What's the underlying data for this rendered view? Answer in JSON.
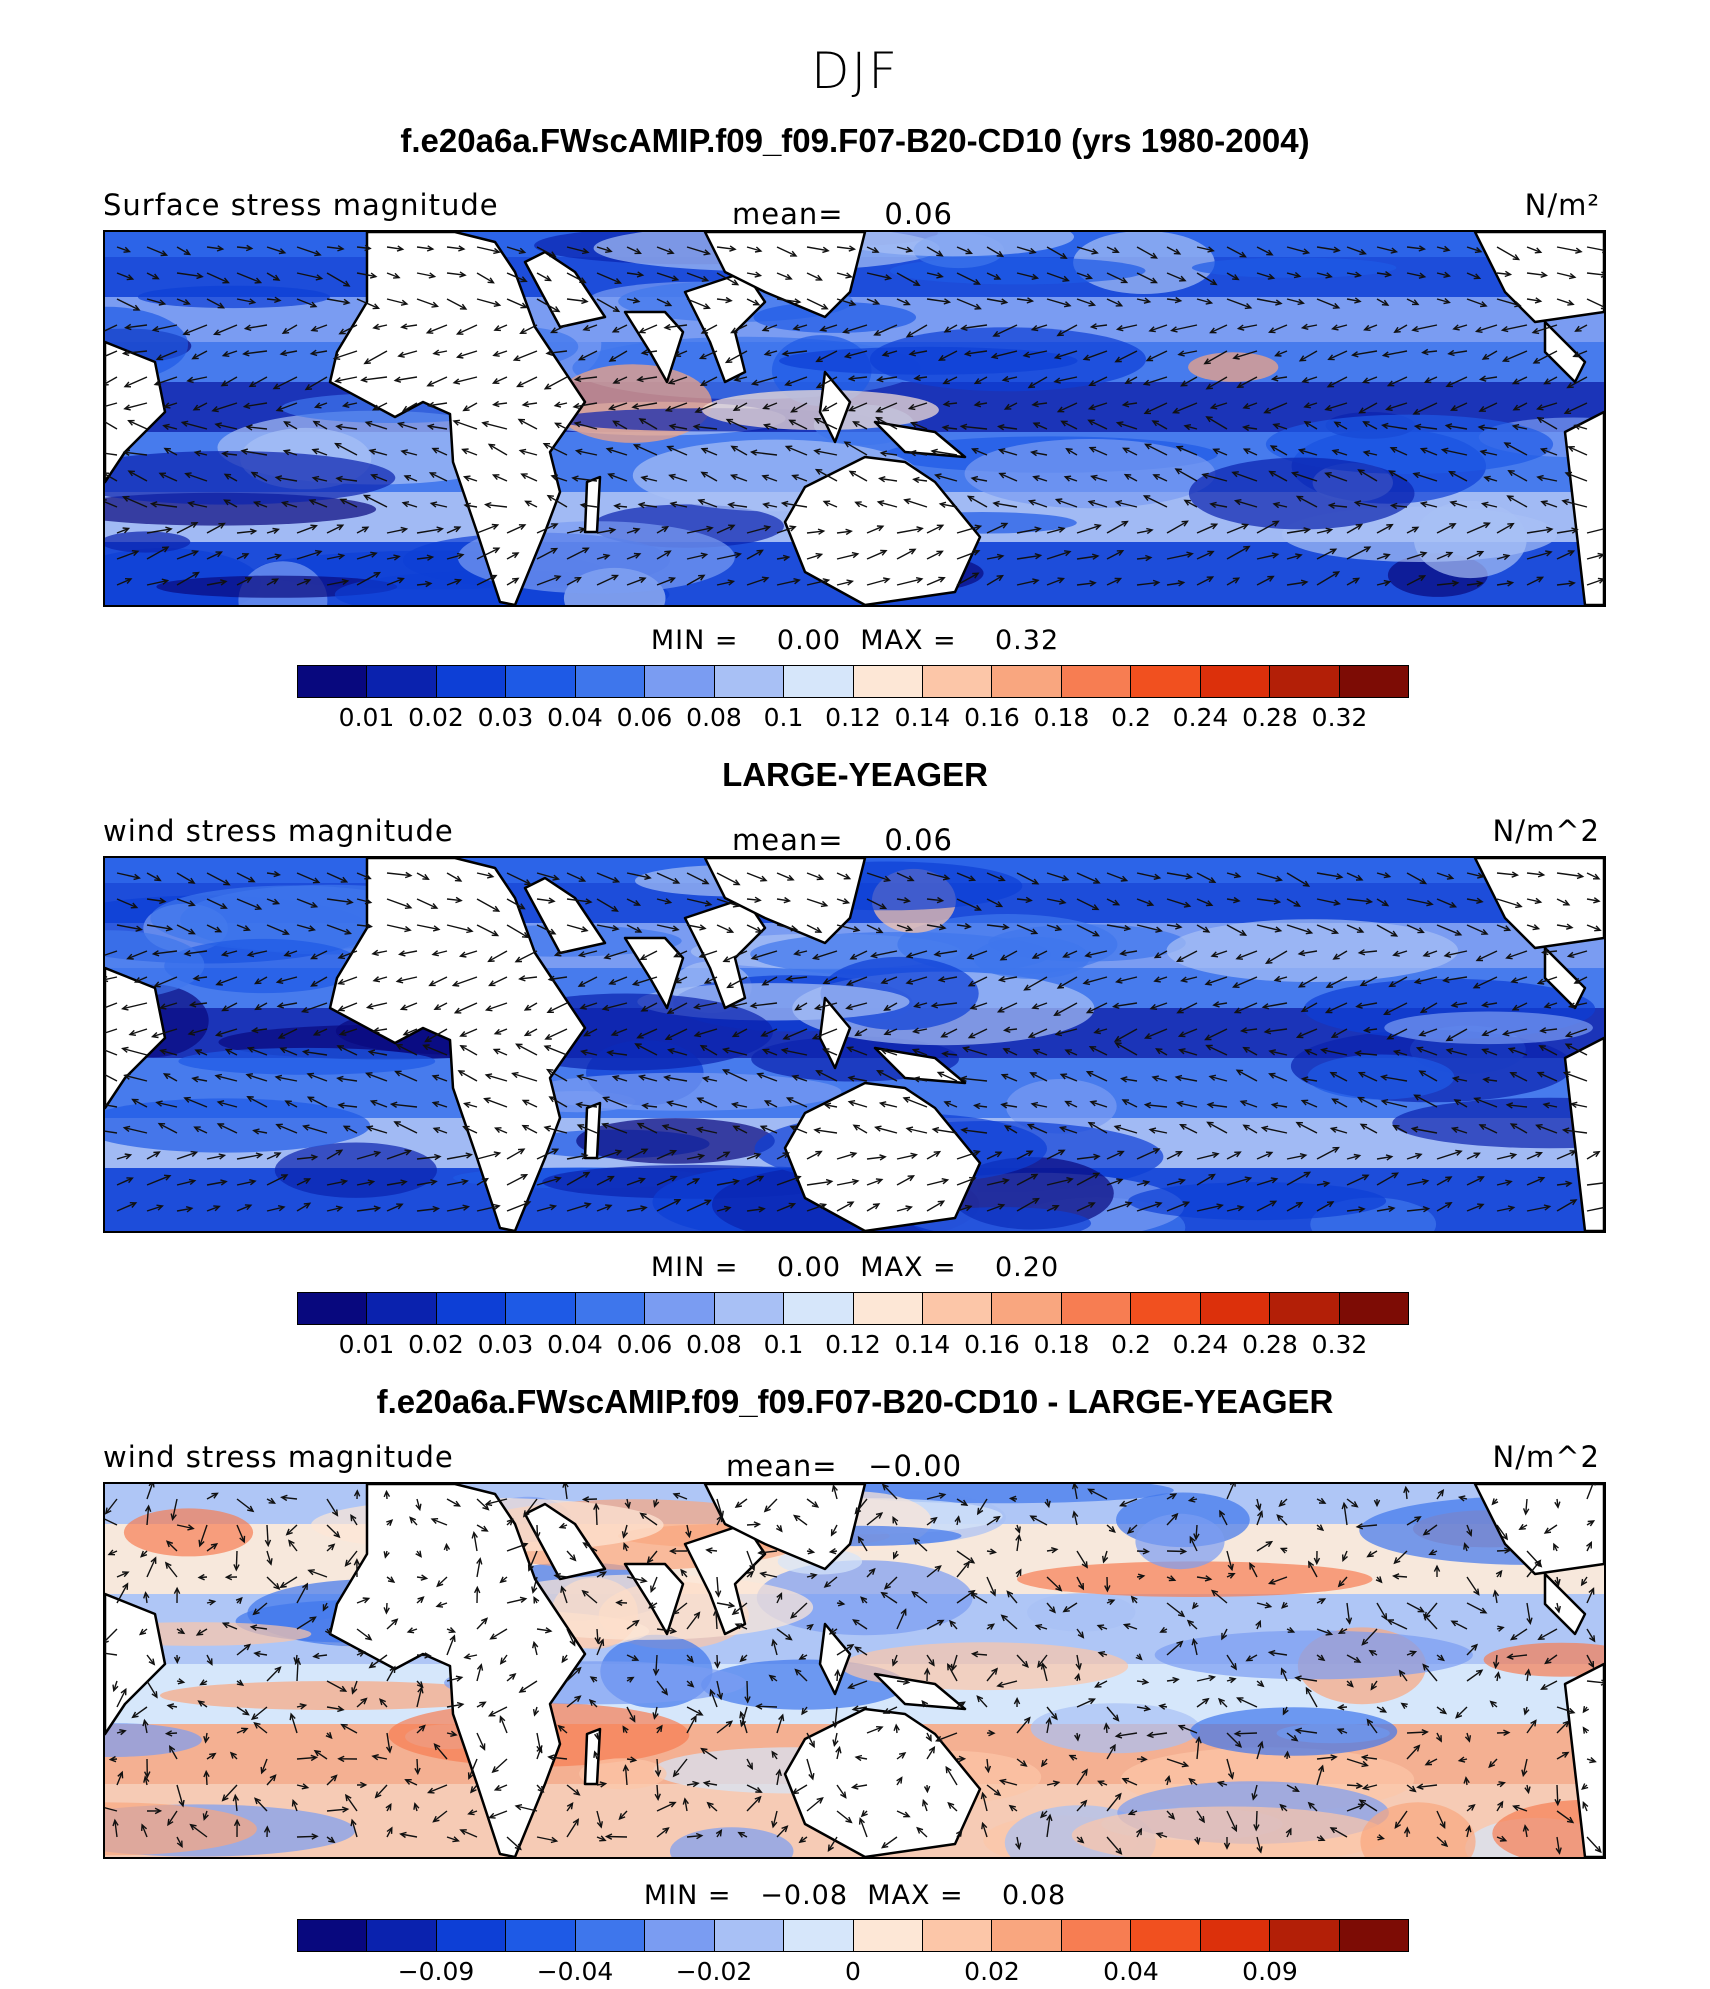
{
  "figure": {
    "title": "DJF"
  },
  "colors": {
    "palette": [
      "#08087e",
      "#0a22ae",
      "#0d3fd6",
      "#1e5ae6",
      "#3e76ec",
      "#7a9cf2",
      "#a8c0f5",
      "#d6e6fa",
      "#fde7d6",
      "#fcc6a8",
      "#f9a67f",
      "#f77d52",
      "#f1501f",
      "#dc300b",
      "#b31f07",
      "#7d0c05"
    ],
    "ocean_mid": "#3e76ec",
    "ocean_strong": "#0d3fd6",
    "land": "#ffffff",
    "coast": "#000000",
    "arrow": "#111111"
  },
  "panels": [
    {
      "title": "f.e20a6a.FWscAMIP.f09_f09.F07-B20-CD10 (yrs 1980-2004)",
      "variable": "Surface stress magnitude",
      "mean_label": "mean=",
      "mean_value": "0.06",
      "units": "N/m²",
      "min_label": "MIN =",
      "min_value": "0.00",
      "max_label": "MAX =",
      "max_value": "0.32"
    },
    {
      "title": "LARGE-YEAGER",
      "variable": "wind stress magnitude",
      "mean_label": "mean=",
      "mean_value": "0.06",
      "units": "N/m^2",
      "min_label": "MIN =",
      "min_value": "0.00",
      "max_label": "MAX =",
      "max_value": "0.20"
    },
    {
      "title": "f.e20a6a.FWscAMIP.f09_f09.F07-B20-CD10 - LARGE-YEAGER",
      "variable": "wind stress magnitude",
      "mean_label": "mean=",
      "mean_value": "−0.00",
      "units": "N/m^2",
      "min_label": "MIN =",
      "min_value": "−0.08",
      "max_label": "MAX =",
      "max_value": "0.08"
    }
  ],
  "chart_data": [
    {
      "type": "heatmap",
      "title": "f.e20a6a.FWscAMIP.f09_f09.F07-B20-CD10 (yrs 1980-2004)",
      "variable": "Surface stress magnitude",
      "units": "N/m²",
      "mean": 0.06,
      "min": 0.0,
      "max": 0.32,
      "colorbar_levels": [
        0.01,
        0.02,
        0.03,
        0.04,
        0.06,
        0.08,
        0.1,
        0.12,
        0.14,
        0.16,
        0.18,
        0.2,
        0.24,
        0.28,
        0.32
      ],
      "colorbar_tick_labels": [
        "0.01",
        "0.02",
        "0.03",
        "0.04",
        "0.06",
        "0.08",
        "0.1",
        "0.12",
        "0.14",
        "0.16",
        "0.18",
        "0.2",
        "0.24",
        "0.28",
        "0.32"
      ],
      "overlay": "wind stress vectors"
    },
    {
      "type": "heatmap",
      "title": "LARGE-YEAGER",
      "variable": "wind stress magnitude",
      "units": "N/m^2",
      "mean": 0.06,
      "min": 0.0,
      "max": 0.2,
      "colorbar_levels": [
        0.01,
        0.02,
        0.03,
        0.04,
        0.06,
        0.08,
        0.1,
        0.12,
        0.14,
        0.16,
        0.18,
        0.2,
        0.24,
        0.28,
        0.32
      ],
      "colorbar_tick_labels": [
        "0.01",
        "0.02",
        "0.03",
        "0.04",
        "0.06",
        "0.08",
        "0.1",
        "0.12",
        "0.14",
        "0.16",
        "0.18",
        "0.2",
        "0.24",
        "0.28",
        "0.32"
      ],
      "overlay": "wind stress vectors"
    },
    {
      "type": "heatmap",
      "title": "f.e20a6a.FWscAMIP.f09_f09.F07-B20-CD10 - LARGE-YEAGER",
      "variable": "wind stress magnitude",
      "units": "N/m^2",
      "mean": -0.0,
      "min": -0.08,
      "max": 0.08,
      "colorbar_tick_labels": [
        "−0.09",
        "−0.04",
        "−0.02",
        "0",
        "0.02",
        "0.04",
        "0.09"
      ],
      "overlay": "wind stress difference vectors"
    }
  ]
}
